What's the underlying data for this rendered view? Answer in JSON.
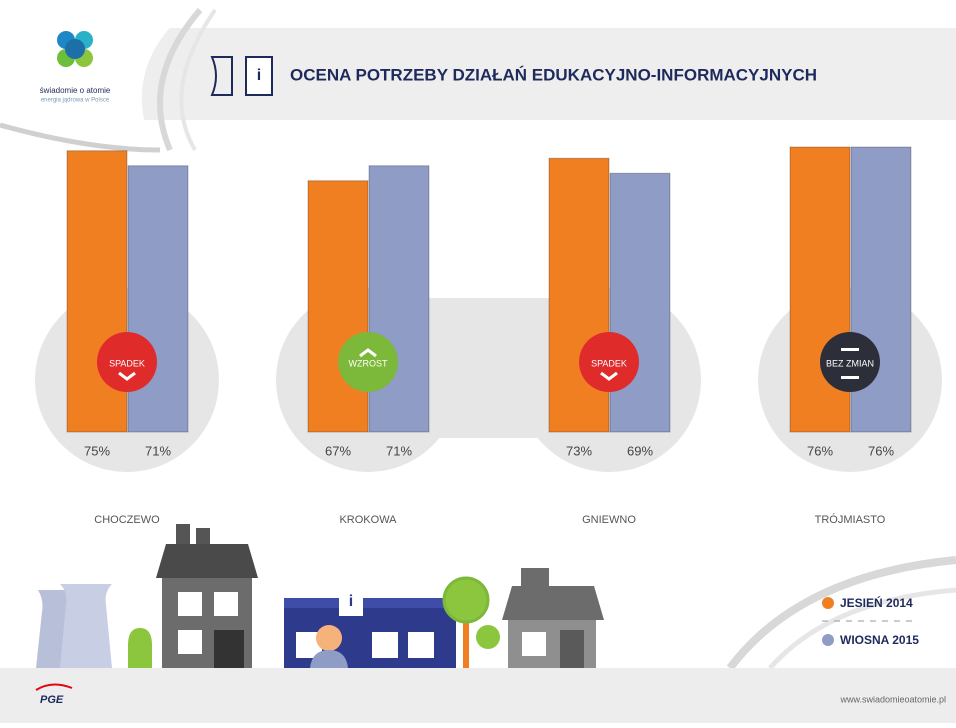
{
  "logo": {
    "name": "świadomie o atomie",
    "tagline": "energia jądrowa w Polsce"
  },
  "footer": {
    "brand": "PGE",
    "url": "www.swiadomieoatomie.pl"
  },
  "chart_data": {
    "type": "bar",
    "title": "OCENA POTRZEBY DZIAŁAŃ EDUKACYJNO-INFORMACYJNYCH",
    "categories": [
      "CHOCZEWO",
      "KROKOWA",
      "GNIEWNO",
      "TRÓJMIASTO"
    ],
    "series": [
      {
        "name": "JESIEŃ 2014",
        "color": "#f07f22",
        "values": [
          75,
          67,
          73,
          76
        ],
        "value_labels": [
          "75%",
          "67%",
          "73%",
          "76%"
        ]
      },
      {
        "name": "WIOSNA 2015",
        "color": "#8f9cc6",
        "values": [
          71,
          71,
          69,
          76
        ],
        "value_labels": [
          "71%",
          "71%",
          "69%",
          "76%"
        ]
      }
    ],
    "annotations": [
      "SPADEK",
      "WZROST",
      "SPADEK",
      "BEZ ZMIAN"
    ],
    "ylim": [
      0,
      80
    ],
    "legend": "bottom-right"
  }
}
